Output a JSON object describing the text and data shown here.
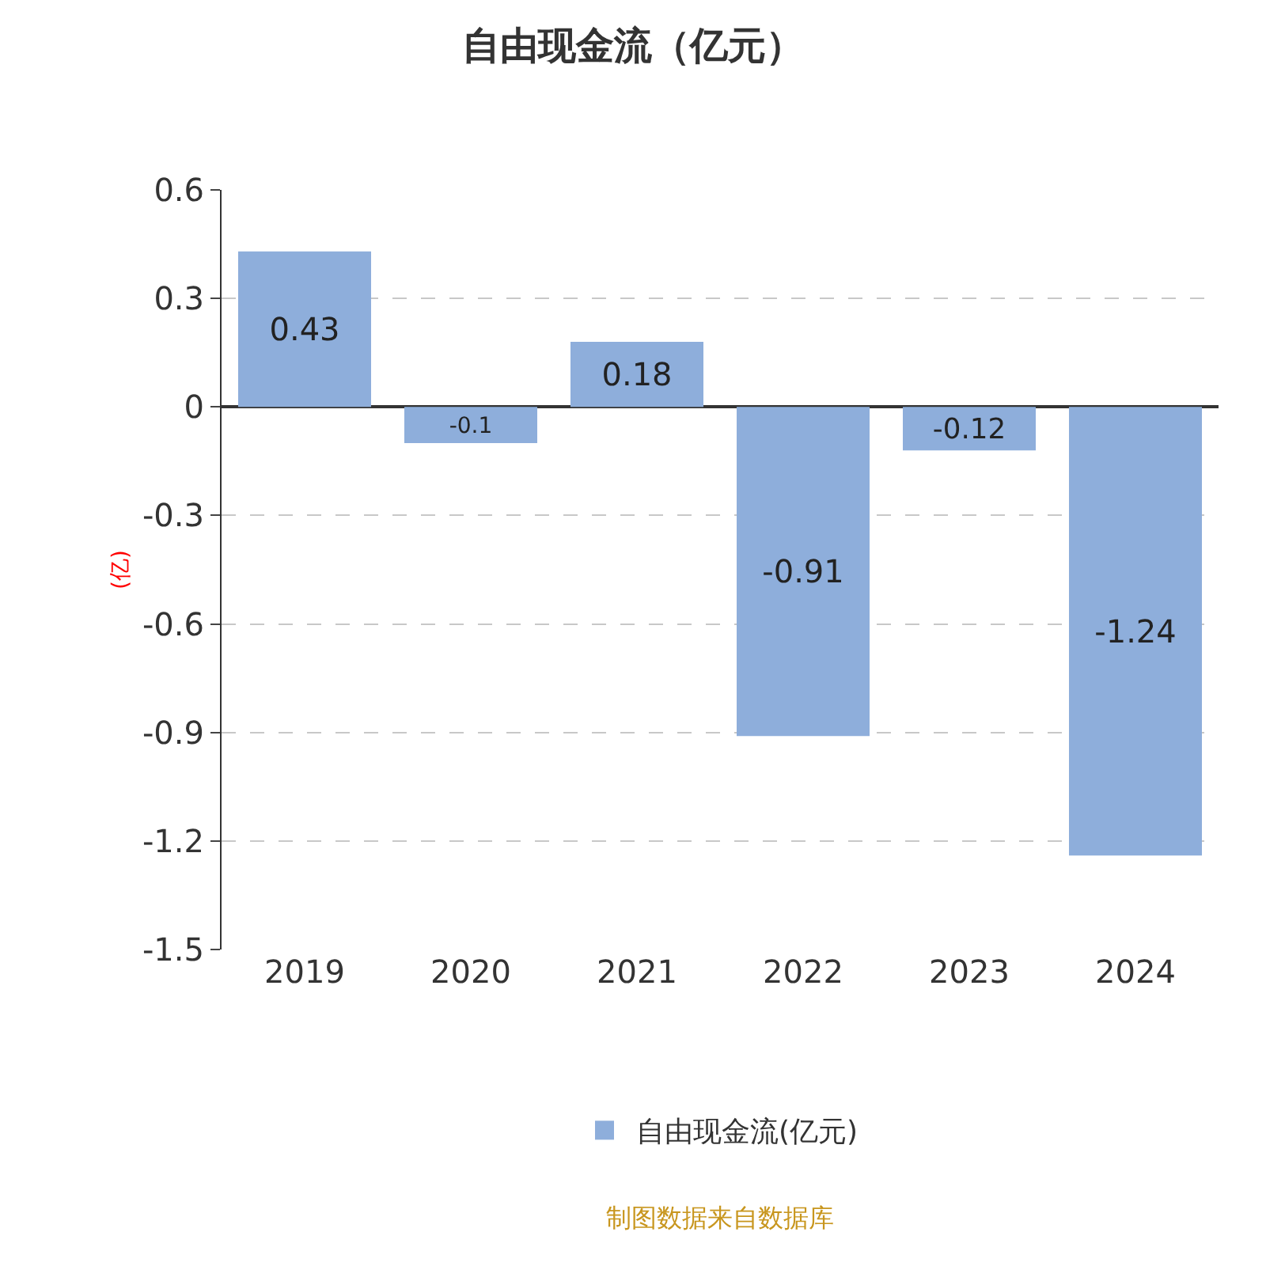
{
  "chart_data": {
    "type": "bar",
    "title": "自由现金流（亿元）",
    "ylabel": "(亿)",
    "categories": [
      "2019",
      "2020",
      "2021",
      "2022",
      "2023",
      "2024"
    ],
    "series": [
      {
        "name": "自由现金流(亿元)",
        "color": "#8eaedb",
        "values": [
          0.43,
          -0.1,
          0.18,
          -0.91,
          -0.12,
          -1.24
        ]
      }
    ],
    "ylim": [
      -1.5,
      0.6
    ],
    "yticks": [
      {
        "value": -1.5,
        "label": "-1.5"
      },
      {
        "value": -1.2,
        "label": "-1.2"
      },
      {
        "value": -0.9,
        "label": "-0.9"
      },
      {
        "value": -0.6,
        "label": "-0.6"
      },
      {
        "value": -0.3,
        "label": "-0.3"
      },
      0,
      {
        "value": 0.3,
        "label": "0.3"
      },
      {
        "value": 0.6,
        "label": "0.6"
      }
    ],
    "grid": "y",
    "legend": "bottom",
    "data_labels": true,
    "annotations": [
      "制图数据来自数据库"
    ]
  }
}
